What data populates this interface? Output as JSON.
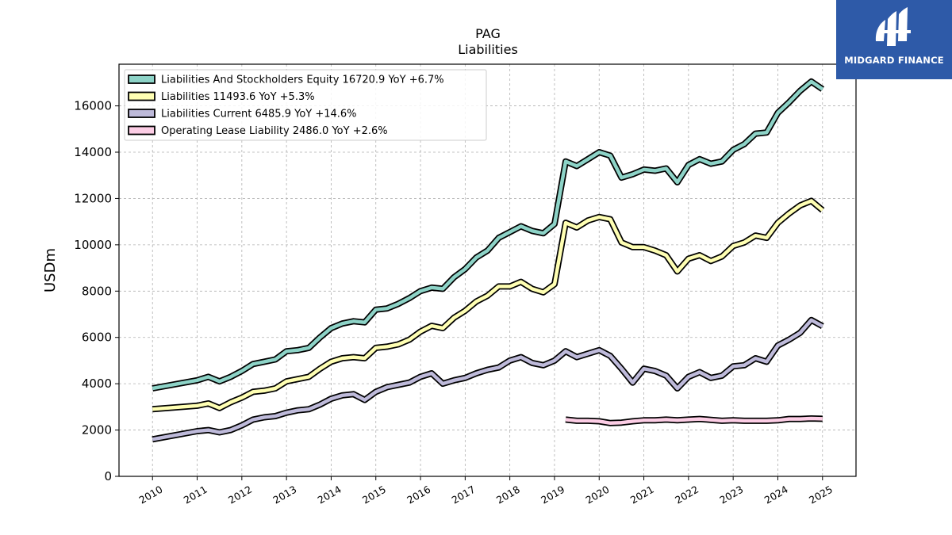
{
  "chart_data": {
    "type": "line",
    "title": "PAG",
    "subtitle": "Liabilities",
    "xlabel": "",
    "ylabel": "USDm",
    "xlim": [
      2009.25,
      2025.75
    ],
    "ylim": [
      0,
      17800
    ],
    "yticks": [
      0,
      2000,
      4000,
      6000,
      8000,
      10000,
      12000,
      14000,
      16000
    ],
    "xticks": [
      "2010",
      "2011",
      "2012",
      "2013",
      "2014",
      "2015",
      "2016",
      "2017",
      "2018",
      "2019",
      "2020",
      "2021",
      "2022",
      "2023",
      "2024",
      "2025"
    ],
    "grid": true,
    "legend_position": "top-left",
    "series": [
      {
        "name": "Liabilities And Stockholders Equity",
        "legend_label": "Liabilities And Stockholders Equity  16720.9 YoY +6.7%",
        "color": "#8dd3c7",
        "x": [
          2010,
          2011,
          2011.25,
          2011.5,
          2011.75,
          2012,
          2012.25,
          2012.5,
          2012.75,
          2013,
          2013.25,
          2013.5,
          2013.75,
          2014,
          2014.25,
          2014.5,
          2014.75,
          2015,
          2015.25,
          2015.5,
          2015.75,
          2016,
          2016.25,
          2016.5,
          2016.75,
          2017,
          2017.25,
          2017.5,
          2017.75,
          2018,
          2018.25,
          2018.5,
          2018.75,
          2019,
          2019.25,
          2019.5,
          2019.75,
          2020,
          2020.25,
          2020.5,
          2020.75,
          2021,
          2021.25,
          2021.5,
          2021.75,
          2022,
          2022.25,
          2022.5,
          2022.75,
          2023,
          2023.25,
          2023.5,
          2023.75,
          2024,
          2024.25,
          2024.5,
          2024.75,
          2025
        ],
        "values": [
          3800,
          4150,
          4300,
          4100,
          4300,
          4550,
          4850,
          4950,
          5050,
          5400,
          5450,
          5550,
          6000,
          6400,
          6600,
          6700,
          6650,
          7200,
          7250,
          7450,
          7700,
          8000,
          8150,
          8100,
          8600,
          8950,
          9450,
          9750,
          10300,
          10550,
          10800,
          10600,
          10500,
          10900,
          13600,
          13400,
          13700,
          14000,
          13850,
          12900,
          13050,
          13250,
          13200,
          13300,
          12700,
          13450,
          13700,
          13500,
          13600,
          14100,
          14350,
          14800,
          14850,
          15700,
          16150,
          16650,
          17050,
          16720.9
        ]
      },
      {
        "name": "Liabilities",
        "legend_label": "Liabilities  11493.6 YoY +5.3%",
        "color": "#ffffb3",
        "x": [
          2010,
          2011,
          2011.25,
          2011.5,
          2011.75,
          2012,
          2012.25,
          2012.5,
          2012.75,
          2013,
          2013.25,
          2013.5,
          2013.75,
          2014,
          2014.25,
          2014.5,
          2014.75,
          2015,
          2015.25,
          2015.5,
          2015.75,
          2016,
          2016.25,
          2016.5,
          2016.75,
          2017,
          2017.25,
          2017.5,
          2017.75,
          2018,
          2018.25,
          2018.5,
          2018.75,
          2019,
          2019.25,
          2019.5,
          2019.75,
          2020,
          2020.25,
          2020.5,
          2020.75,
          2021,
          2021.25,
          2021.5,
          2021.75,
          2022,
          2022.25,
          2022.5,
          2022.75,
          2023,
          2023.25,
          2023.5,
          2023.75,
          2024,
          2024.25,
          2024.5,
          2024.75,
          2025
        ],
        "values": [
          2900,
          3050,
          3150,
          2950,
          3200,
          3400,
          3650,
          3700,
          3800,
          4100,
          4200,
          4300,
          4650,
          4950,
          5100,
          5150,
          5100,
          5550,
          5600,
          5700,
          5900,
          6250,
          6500,
          6400,
          6850,
          7150,
          7550,
          7800,
          8200,
          8200,
          8400,
          8100,
          7950,
          8300,
          10950,
          10750,
          11050,
          11200,
          11100,
          10100,
          9900,
          9900,
          9750,
          9550,
          8850,
          9400,
          9550,
          9300,
          9500,
          9950,
          10100,
          10400,
          10300,
          10950,
          11350,
          11700,
          11900,
          11493.6
        ]
      },
      {
        "name": "Liabilities Current",
        "legend_label": "Liabilities Current  6485.9 YoY +14.6%",
        "color": "#bebada",
        "x": [
          2010,
          2011,
          2011.25,
          2011.5,
          2011.75,
          2012,
          2012.25,
          2012.5,
          2012.75,
          2013,
          2013.25,
          2013.5,
          2013.75,
          2014,
          2014.25,
          2014.5,
          2014.75,
          2015,
          2015.25,
          2015.5,
          2015.75,
          2016,
          2016.25,
          2016.5,
          2016.75,
          2017,
          2017.25,
          2017.5,
          2017.75,
          2018,
          2018.25,
          2018.5,
          2018.75,
          2019,
          2019.25,
          2019.5,
          2019.75,
          2020,
          2020.25,
          2020.5,
          2020.75,
          2021,
          2021.25,
          2021.5,
          2021.75,
          2022,
          2022.25,
          2022.5,
          2022.75,
          2023,
          2023.25,
          2023.5,
          2023.75,
          2024,
          2024.25,
          2024.5,
          2024.75,
          2025
        ],
        "values": [
          1600,
          1950,
          2000,
          1900,
          2000,
          2200,
          2450,
          2550,
          2600,
          2750,
          2850,
          2900,
          3100,
          3350,
          3500,
          3550,
          3300,
          3650,
          3850,
          3950,
          4050,
          4300,
          4450,
          4000,
          4150,
          4250,
          4450,
          4600,
          4700,
          5000,
          5150,
          4900,
          4800,
          5000,
          5400,
          5150,
          5300,
          5450,
          5200,
          4650,
          4050,
          4650,
          4550,
          4350,
          3800,
          4300,
          4500,
          4250,
          4350,
          4750,
          4800,
          5100,
          4950,
          5650,
          5900,
          6200,
          6750,
          6485.9
        ]
      },
      {
        "name": "Operating Lease Liability",
        "legend_label": "Operating Lease Liability  2486.0 YoY +2.6%",
        "color": "#fccde5",
        "x": [
          2019.25,
          2019.5,
          2019.75,
          2020,
          2020.25,
          2020.5,
          2020.75,
          2021,
          2021.25,
          2021.5,
          2021.75,
          2022,
          2022.25,
          2022.5,
          2022.75,
          2023,
          2023.25,
          2023.5,
          2023.75,
          2024,
          2024.25,
          2024.5,
          2024.75,
          2025
        ],
        "values": [
          2450,
          2400,
          2400,
          2380,
          2300,
          2320,
          2380,
          2420,
          2420,
          2450,
          2420,
          2450,
          2480,
          2440,
          2400,
          2420,
          2400,
          2400,
          2400,
          2420,
          2480,
          2480,
          2500,
          2486.0
        ]
      }
    ]
  },
  "watermark": {
    "text": "MIDGARD FINANCE",
    "bg_color": "#2e5aa8"
  }
}
